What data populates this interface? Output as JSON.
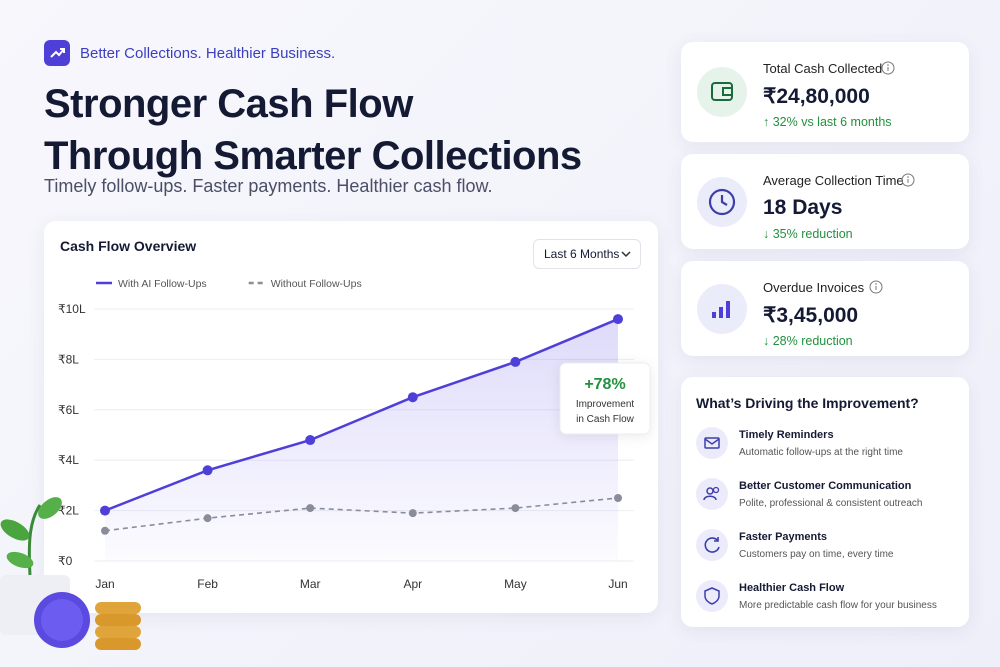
{
  "header": {
    "tag": "Better Collections. Healthier Business.",
    "title_lines": [
      "Stronger Cash Flow",
      "Through Smarter Collections"
    ],
    "subtitle": "Timely follow-ups. Faster payments. Healthier cash flow."
  },
  "chart_data": {
    "type": "line",
    "title": "Cash Flow Overview",
    "period_selector": "Last 6 Months",
    "categories": [
      "Jan",
      "Feb",
      "Mar",
      "Apr",
      "May",
      "Jun"
    ],
    "series": [
      {
        "name": "With AI Follow-Ups",
        "color": "#4f3fd9",
        "style": "solid",
        "values": [
          2.0,
          3.6,
          4.8,
          6.5,
          7.9,
          9.6
        ]
      },
      {
        "name": "Without Follow-Ups",
        "color": "#8a8d99",
        "style": "dashed",
        "values": [
          1.2,
          1.7,
          2.1,
          1.9,
          2.1,
          2.5
        ]
      }
    ],
    "ylim": [
      0,
      10
    ],
    "yticks": [
      {
        "value": 0,
        "label": "₹0"
      },
      {
        "value": 2,
        "label": "₹2L"
      },
      {
        "value": 4,
        "label": "₹4L"
      },
      {
        "value": 6,
        "label": "₹6L"
      },
      {
        "value": 8,
        "label": "₹8L"
      },
      {
        "value": 10,
        "label": "₹10L"
      }
    ],
    "grid": true,
    "annotation": {
      "value": "+78%",
      "text_lines": [
        "Improvement",
        "in Cash Flow"
      ]
    }
  },
  "stats": [
    {
      "title": "Total Cash Collected",
      "value": "₹24,80,000",
      "change": "↑ 32% vs last 6 months"
    },
    {
      "title": "Average Collection Time",
      "value": "18 Days",
      "change": "↓ 35% reduction"
    },
    {
      "title": "Overdue Invoices",
      "value": "₹3,45,000",
      "change": "↓ 28% reduction"
    }
  ],
  "drivers": {
    "title": "What’s Driving the Improvement?",
    "items": [
      {
        "title": "Timely Reminders",
        "description": "Automatic follow-ups at the right time"
      },
      {
        "title": "Better Customer Communication",
        "description": "Polite, professional & consistent outreach"
      },
      {
        "title": "Faster Payments",
        "description": "Customers pay on time, every time"
      },
      {
        "title": "Healthier Cash Flow",
        "description": "More predictable cash flow for your business"
      }
    ]
  }
}
